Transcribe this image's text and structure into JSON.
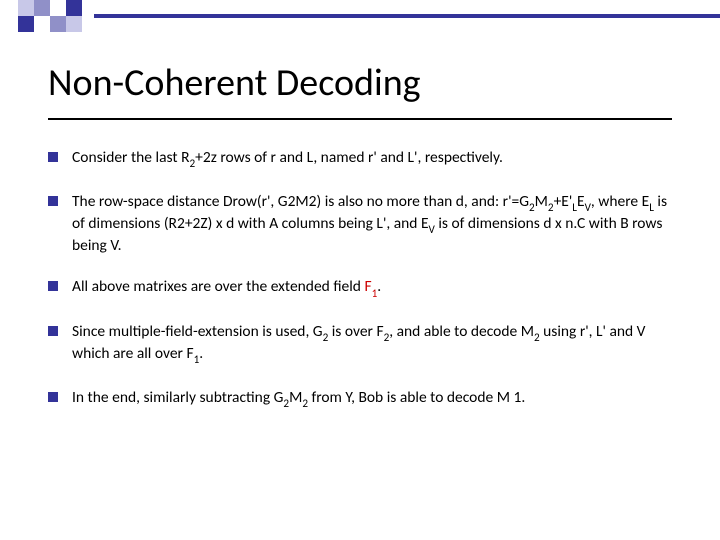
{
  "topbar": {
    "square_colors": [
      "#c8c8e8",
      "#9090c8",
      "#ffffff",
      "#333399",
      "#333399",
      "#ffffff",
      "#9090c8",
      "#c8c8e8"
    ],
    "line_color": "#333399"
  },
  "title": "Non-Coherent Decoding",
  "bullets": {
    "b1": {
      "t1": "Consider the last R",
      "s1": "2",
      "t2": "+2z rows of r and L, named r' and L', respectively."
    },
    "b2": {
      "t1": "The row-space distance Drow(r', G2M2) is also no more than d, and: r'=G",
      "s1": "2",
      "t2": "M",
      "s2": "2",
      "t3": "+E'",
      "s3": "L",
      "t4": "E",
      "s4": "V",
      "t5": ", where E",
      "s5": "L",
      "t6": " is of dimensions (R2+2Z) x d with A columns being L', and E",
      "s6": "V",
      "t7": " is of dimensions d x n.C with B rows being V."
    },
    "b3": {
      "t1": "All above matrixes are over the extended field  ",
      "f": "F",
      "fs": "1",
      "t2": "."
    },
    "b4": {
      "t1": "Since multiple-field-extension is used, G",
      "s1": "2",
      "t2": " is over F",
      "s2": "2",
      "t3": ", and able to decode M",
      "s3": "2",
      "t4": " using r', L' and V which are all over F",
      "s4": "1",
      "t5": "."
    },
    "b5": {
      "t1": "In the end, similarly subtracting G",
      "s1": "2",
      "t2": "M",
      "s2": "2",
      "t3": " from Y, Bob is able to decode M 1."
    }
  }
}
